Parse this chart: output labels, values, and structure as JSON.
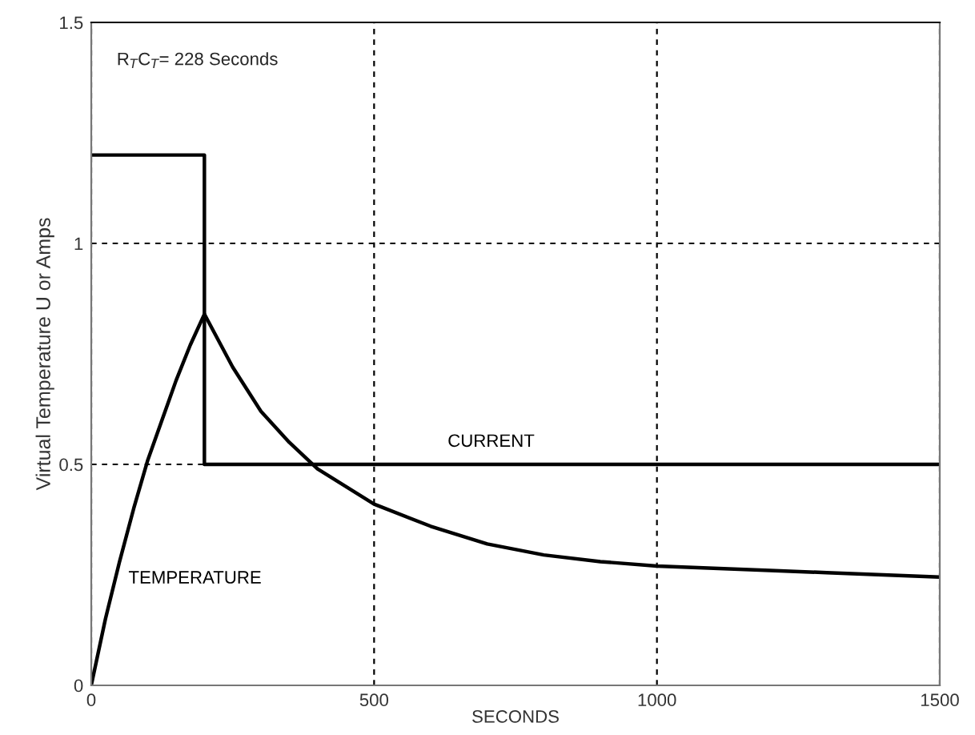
{
  "chart_data": {
    "type": "line",
    "xlabel": "SECONDS",
    "ylabel": "Virtual Temperature U or Amps",
    "xlim": [
      0,
      1500
    ],
    "ylim": [
      0,
      1.5
    ],
    "xticks": [
      0,
      500,
      1000,
      1500
    ],
    "yticks": [
      0,
      0.5,
      1,
      1.5
    ],
    "grid": true,
    "annotations": [
      "R$_{T}$C$_{T}$= 228 Seconds"
    ],
    "series": [
      {
        "name": "CURRENT",
        "type": "step",
        "color": "#000000",
        "x": [
          0,
          200,
          1500
        ],
        "values": [
          1.2,
          0.5,
          0.5
        ]
      },
      {
        "name": "TEMPERATURE",
        "color": "#000000",
        "x": [
          0,
          25,
          50,
          75,
          100,
          125,
          150,
          175,
          200,
          250,
          300,
          350,
          400,
          500,
          600,
          700,
          800,
          900,
          1000,
          1100,
          1200,
          1300,
          1400,
          1500
        ],
        "values": [
          0,
          0.15,
          0.28,
          0.4,
          0.51,
          0.6,
          0.69,
          0.77,
          0.84,
          0.72,
          0.62,
          0.55,
          0.49,
          0.41,
          0.36,
          0.32,
          0.295,
          0.28,
          0.27,
          0.265,
          0.26,
          0.255,
          0.25,
          0.245
        ]
      }
    ]
  }
}
